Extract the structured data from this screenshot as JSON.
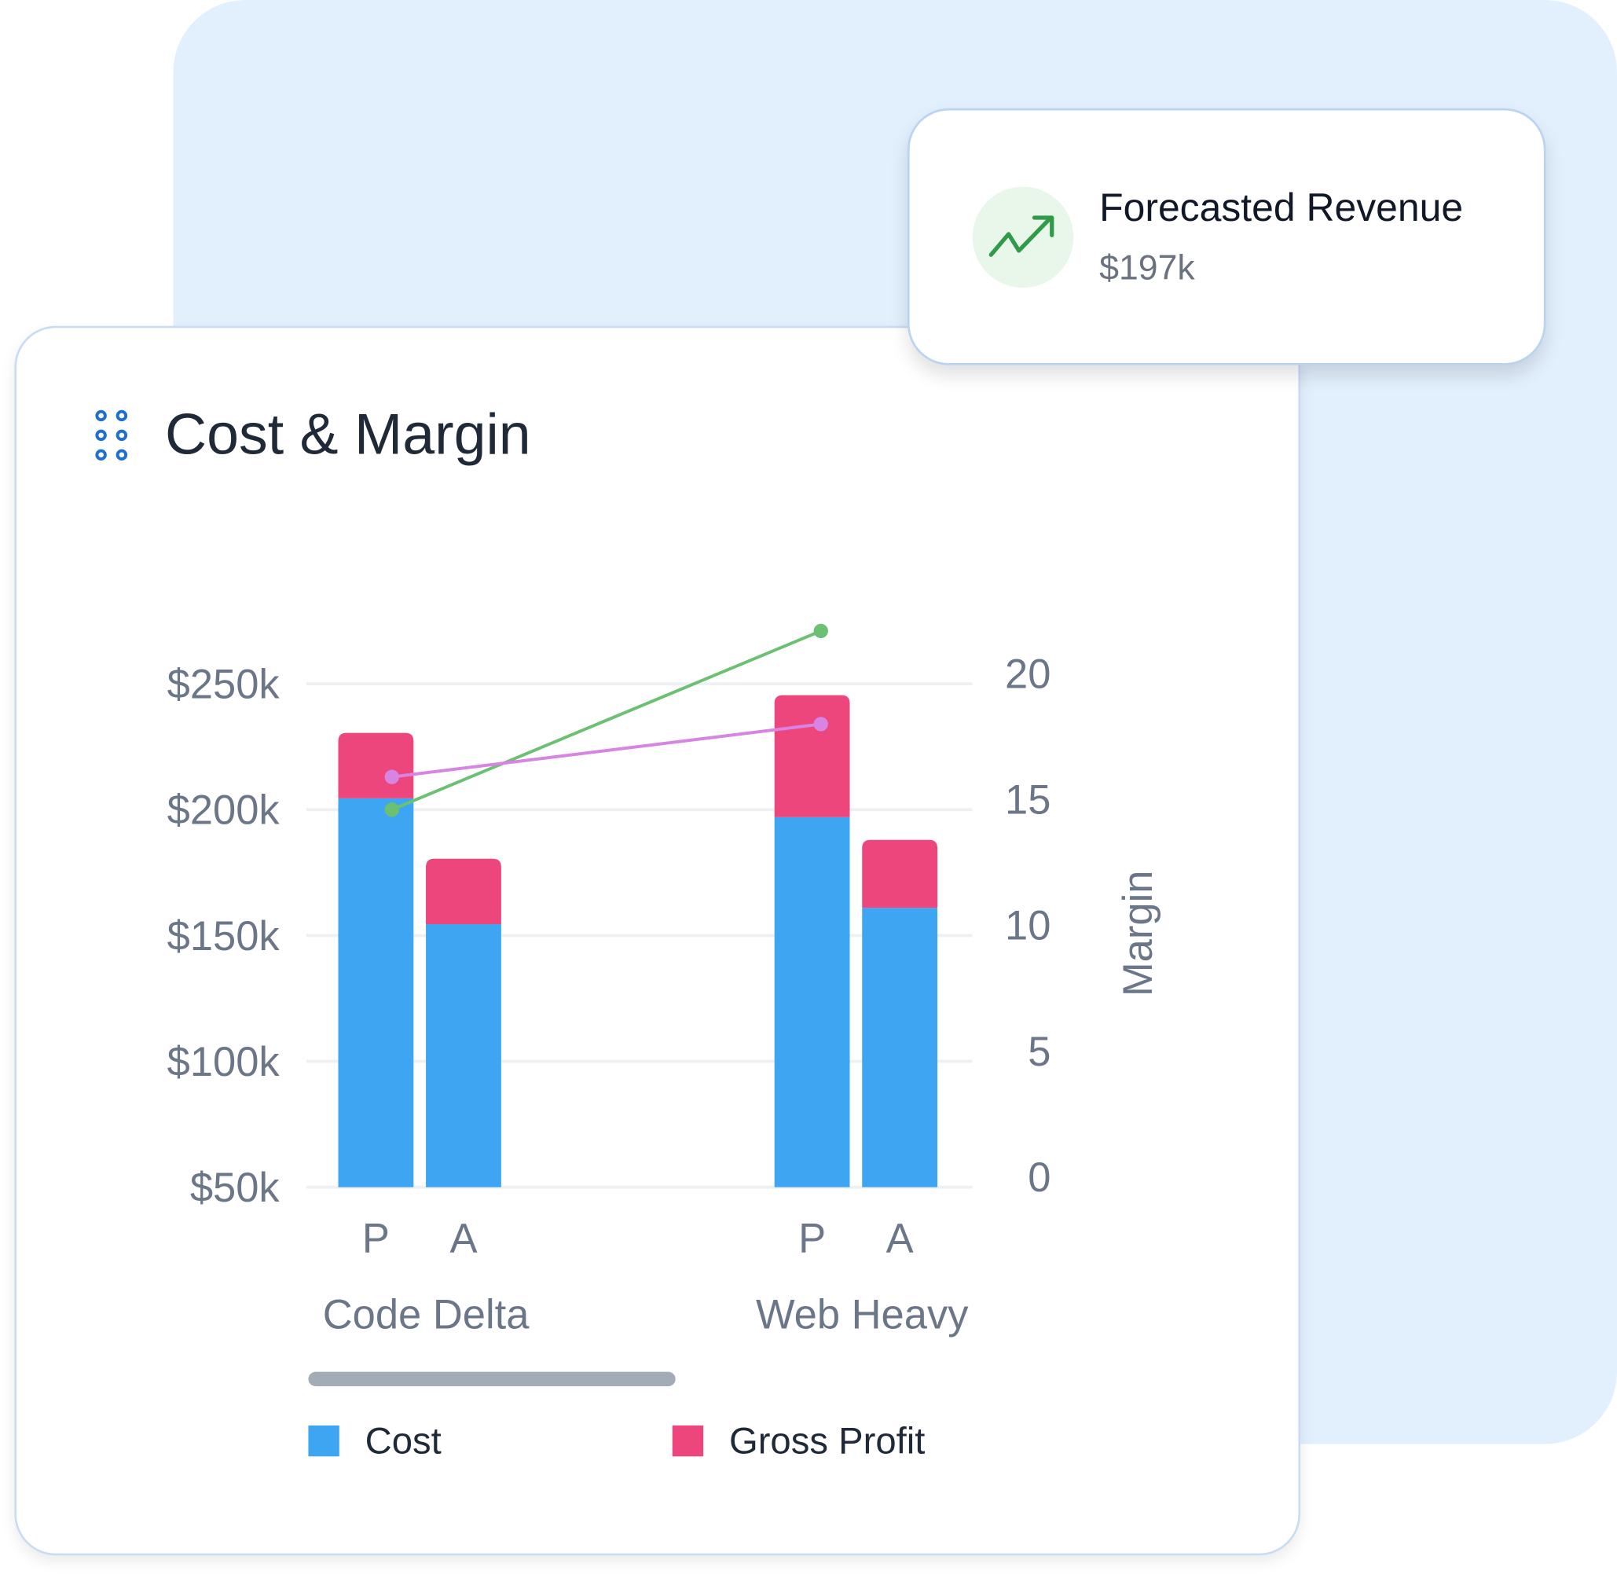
{
  "revenue_card": {
    "title": "Forecasted Revenue",
    "value": "$197k",
    "icon": "trending-up-icon"
  },
  "card": {
    "title": "Cost & Margin",
    "icon": "drag-handle-icon"
  },
  "colors": {
    "cost": "#3ea5f2",
    "gross_profit": "#ec467c",
    "line_green": "#6cc072",
    "line_purple": "#d784e3"
  },
  "chart_data": {
    "type": "bar",
    "title": "Cost & Margin",
    "groups": [
      "Code Delta",
      "Web Heavy"
    ],
    "sub_categories": [
      "P",
      "A"
    ],
    "series": [
      {
        "name": "Cost",
        "values": [
          [
            154.5,
            104.5
          ],
          [
            147,
            111
          ]
        ]
      },
      {
        "name": "Gross Profit",
        "values": [
          [
            26,
            26
          ],
          [
            48.5,
            27
          ]
        ]
      }
    ],
    "lines": [
      {
        "name": "margin-green",
        "values": [
          15.0,
          22.1
        ]
      },
      {
        "name": "margin-purple",
        "values": [
          16.3,
          18.4
        ]
      }
    ],
    "left_axis": {
      "ticks": [
        "$50k",
        "$100k",
        "$150k",
        "$200k",
        "$250k"
      ],
      "tick_values": [
        50,
        100,
        150,
        200,
        250
      ],
      "ylim": [
        50,
        250
      ],
      "unit": "k$"
    },
    "right_axis": {
      "label": "Margin",
      "ticks": [
        "0",
        "5",
        "10",
        "15",
        "20"
      ],
      "tick_values": [
        0,
        5,
        10,
        15,
        20
      ],
      "ylim": [
        0,
        20
      ]
    },
    "legend": [
      {
        "label": "Cost"
      },
      {
        "label": "Gross Profit"
      }
    ],
    "legend_position": "bottom",
    "grid": true
  }
}
